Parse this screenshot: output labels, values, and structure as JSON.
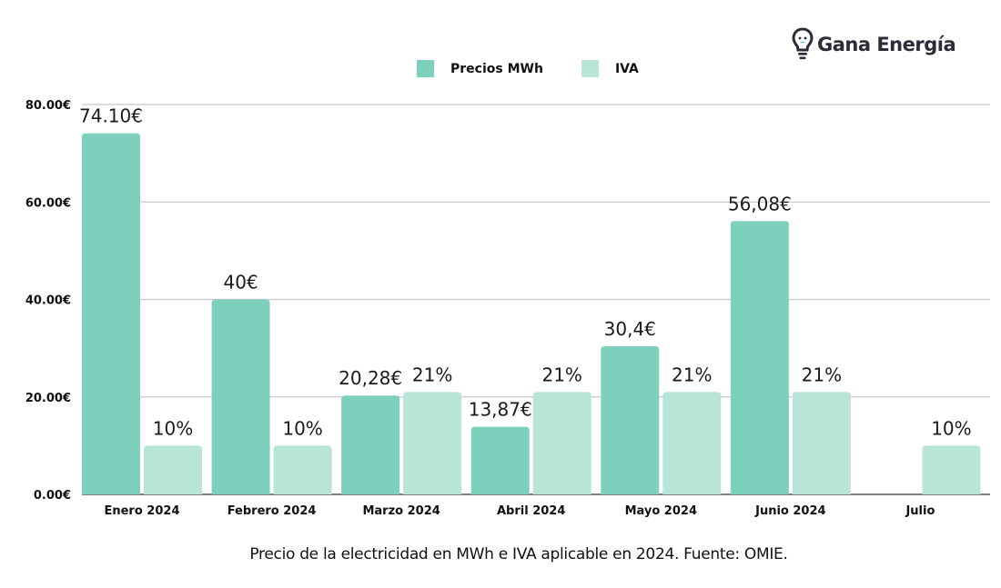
{
  "brand": {
    "name": "Gana Energía",
    "icon": "lightbulb-smile-icon",
    "accent": "#2b2b3a"
  },
  "legend": [
    {
      "label": "Precios MWh",
      "color": "#7dd0bb"
    },
    {
      "label": "IVA",
      "color": "#b9e4d8"
    }
  ],
  "caption": "Precio de la electricidad en MWh e IVA aplicable en 2024. Fuente: OMIE.",
  "chart_data": {
    "type": "bar",
    "title": "",
    "xlabel": "",
    "ylabel": "",
    "ylim": [
      0,
      80
    ],
    "yticks": [
      0,
      20,
      40,
      60,
      80
    ],
    "ytick_labels": [
      "0.00€",
      "20.00€",
      "40.00€",
      "60.00€",
      "80.00€"
    ],
    "grid": true,
    "legend_position": "top-center",
    "categories": [
      "Enero 2024",
      "Febrero 2024",
      "Marzo 2024",
      "Abril 2024",
      "Mayo 2024",
      "Junio 2024",
      "Julio"
    ],
    "series": [
      {
        "name": "Precios MWh",
        "color": "#7dd0bb",
        "values": [
          74.1,
          40,
          20.28,
          13.87,
          30.4,
          56.08,
          null
        ],
        "labels": [
          "74.10€",
          "40€",
          "20,28€",
          "13,87€",
          "30,4€",
          "56,08€",
          ""
        ]
      },
      {
        "name": "IVA",
        "color": "#b9e4d8",
        "note": "bar heights drawn on same axis as percentage points",
        "values": [
          10,
          10,
          21,
          21,
          21,
          21,
          10
        ],
        "labels": [
          "10%",
          "10%",
          "21%",
          "21%",
          "21%",
          "21%",
          "10%"
        ]
      }
    ]
  }
}
